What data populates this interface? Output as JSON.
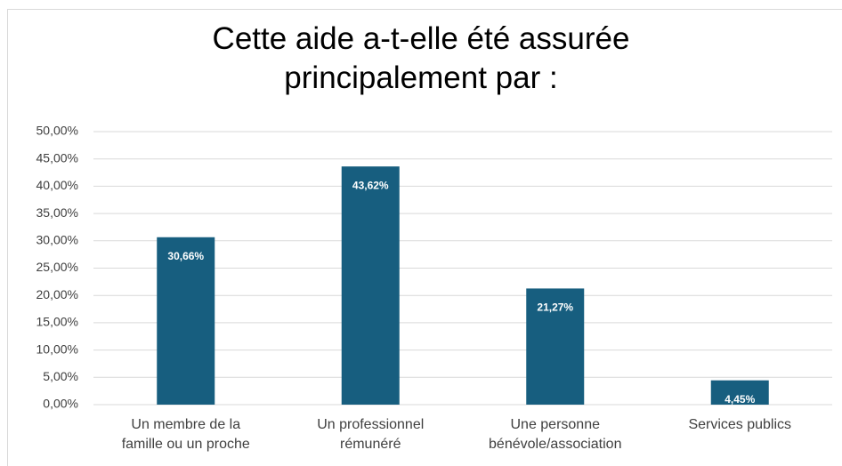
{
  "chart_data": {
    "type": "bar",
    "title": "Cette aide a-t-elle été assurée principalement par :",
    "categories": [
      "Un membre de la famille ou un proche",
      "Un professionnel rémunéré",
      "Une personne bénévole/association",
      "Services publics"
    ],
    "values": [
      30.66,
      43.62,
      21.27,
      4.45
    ],
    "value_labels": [
      "30,66%",
      "43,62%",
      "21,27%",
      "4,45%"
    ],
    "color": "#175e7f",
    "ylim": [
      0,
      50
    ],
    "yticks": [
      {
        "value": 0,
        "label": "0,00%"
      },
      {
        "value": 5,
        "label": "5,00%"
      },
      {
        "value": 10,
        "label": "10,00%"
      },
      {
        "value": 15,
        "label": "15,00%"
      },
      {
        "value": 20,
        "label": "20,00%"
      },
      {
        "value": 25,
        "label": "25,00%"
      },
      {
        "value": 30,
        "label": "30,00%"
      },
      {
        "value": 35,
        "label": "35,00%"
      },
      {
        "value": 40,
        "label": "40,00%"
      },
      {
        "value": 45,
        "label": "45,00%"
      },
      {
        "value": 50,
        "label": "50,00%"
      }
    ],
    "grid": true
  }
}
